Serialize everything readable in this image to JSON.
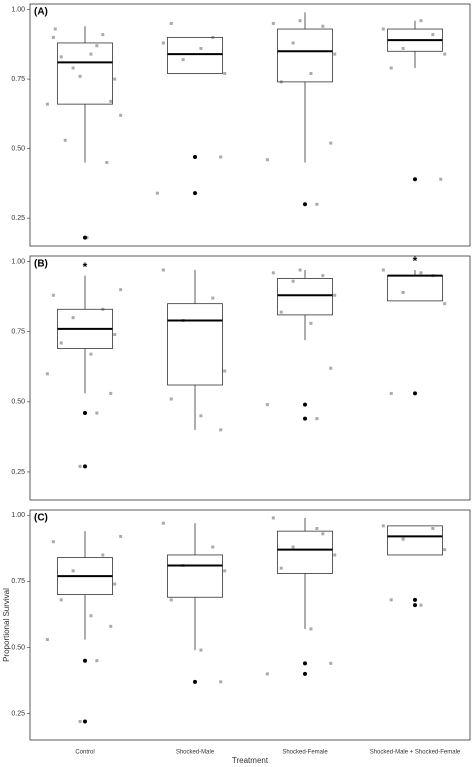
{
  "chart_data": [
    {
      "type": "box",
      "label": "(A)",
      "ylim": [
        0.15,
        1.02
      ],
      "yticks": [
        0.25,
        {
          "value": 0.5,
          "label": "0.50"
        },
        0.75,
        {
          "value": 1,
          "label": "1.00"
        }
      ],
      "boxes": [
        {
          "whislo": 0.45,
          "q1": 0.66,
          "med": 0.81,
          "q3": 0.88,
          "whishi": 0.94,
          "fliers": [
            0.18
          ]
        },
        {
          "whislo": 0.77,
          "q1": 0.77,
          "med": 0.84,
          "q3": 0.9,
          "whishi": 0.9,
          "fliers": [
            0.47,
            0.34
          ]
        },
        {
          "whislo": 0.45,
          "q1": 0.74,
          "med": 0.85,
          "q3": 0.93,
          "whishi": 0.99,
          "fliers": [
            0.3
          ]
        },
        {
          "whislo": 0.79,
          "q1": 0.85,
          "med": 0.89,
          "q3": 0.93,
          "whishi": 0.96,
          "fliers": [
            0.39
          ]
        }
      ],
      "points": [
        [
          0.9,
          0.91,
          0.79,
          0.75,
          0.83,
          0.84,
          0.67,
          0.66,
          0.87,
          0.76,
          0.62,
          0.53,
          0.45,
          0.93,
          0.18
        ],
        [
          0.88,
          0.9,
          0.82,
          0.77,
          0.95,
          0.86,
          0.47,
          0.34
        ],
        [
          0.95,
          0.94,
          0.88,
          0.84,
          0.74,
          0.77,
          0.52,
          0.46,
          0.3,
          0.96
        ],
        [
          0.93,
          0.91,
          0.86,
          0.84,
          0.79,
          0.96,
          0.39
        ]
      ]
    },
    {
      "type": "box",
      "label": "(B)",
      "ylim": [
        0.15,
        1.02
      ],
      "yticks": [
        0.25,
        {
          "value": 0.5,
          "label": "0.50"
        },
        0.75,
        {
          "value": 1,
          "label": "1.00"
        }
      ],
      "boxes": [
        {
          "whislo": 0.53,
          "q1": 0.69,
          "med": 0.76,
          "q3": 0.83,
          "whishi": 0.95,
          "fliers": [
            0.46,
            0.27
          ]
        },
        {
          "whislo": 0.4,
          "q1": 0.56,
          "med": 0.79,
          "q3": 0.85,
          "whishi": 0.97,
          "fliers": []
        },
        {
          "whislo": 0.72,
          "q1": 0.81,
          "med": 0.88,
          "q3": 0.94,
          "whishi": 0.97,
          "fliers": [
            0.49,
            0.44
          ]
        },
        {
          "whislo": 0.86,
          "q1": 0.86,
          "med": 0.95,
          "q3": 0.95,
          "whishi": 0.97,
          "fliers": [
            0.53
          ]
        }
      ],
      "points": [
        [
          0.88,
          0.83,
          0.8,
          0.74,
          0.71,
          0.67,
          0.53,
          0.6,
          0.46,
          0.27,
          0.9
        ],
        [
          0.97,
          0.87,
          0.79,
          0.61,
          0.51,
          0.45,
          0.4
        ],
        [
          0.96,
          0.95,
          0.93,
          0.88,
          0.82,
          0.78,
          0.62,
          0.49,
          0.44,
          0.97
        ],
        [
          0.97,
          0.95,
          0.89,
          0.85,
          0.53,
          0.96
        ]
      ],
      "annotations": [
        "*",
        null,
        null,
        "*"
      ]
    },
    {
      "type": "box",
      "label": "(C)",
      "ylim": [
        0.15,
        1.02
      ],
      "yticks": [
        0.25,
        {
          "value": 0.5,
          "label": "0.50"
        },
        0.75,
        {
          "value": 1,
          "label": "1.00"
        }
      ],
      "x_label": "Treatment",
      "y_label": "Proportional Survival",
      "categories": [
        "Control",
        "Shocked-Male",
        "Shocked-Female",
        "Shocked-Male + Shocked-Female"
      ],
      "boxes": [
        {
          "whislo": 0.53,
          "q1": 0.7,
          "med": 0.77,
          "q3": 0.84,
          "whishi": 0.94,
          "fliers": [
            0.45,
            0.22
          ]
        },
        {
          "whislo": 0.49,
          "q1": 0.69,
          "med": 0.81,
          "q3": 0.85,
          "whishi": 0.97,
          "fliers": [
            0.37
          ]
        },
        {
          "whislo": 0.57,
          "q1": 0.78,
          "med": 0.87,
          "q3": 0.94,
          "whishi": 0.99,
          "fliers": [
            0.44,
            0.4
          ]
        },
        {
          "whislo": 0.85,
          "q1": 0.85,
          "med": 0.92,
          "q3": 0.96,
          "whishi": 0.96,
          "fliers": [
            0.68,
            0.66
          ]
        }
      ],
      "points": [
        [
          0.9,
          0.85,
          0.79,
          0.74,
          0.68,
          0.62,
          0.58,
          0.53,
          0.45,
          0.22,
          0.92
        ],
        [
          0.97,
          0.88,
          0.81,
          0.79,
          0.68,
          0.49,
          0.37
        ],
        [
          0.99,
          0.93,
          0.88,
          0.85,
          0.8,
          0.57,
          0.44,
          0.4,
          0.95
        ],
        [
          0.96,
          0.95,
          0.91,
          0.87,
          0.68,
          0.66
        ]
      ]
    }
  ]
}
